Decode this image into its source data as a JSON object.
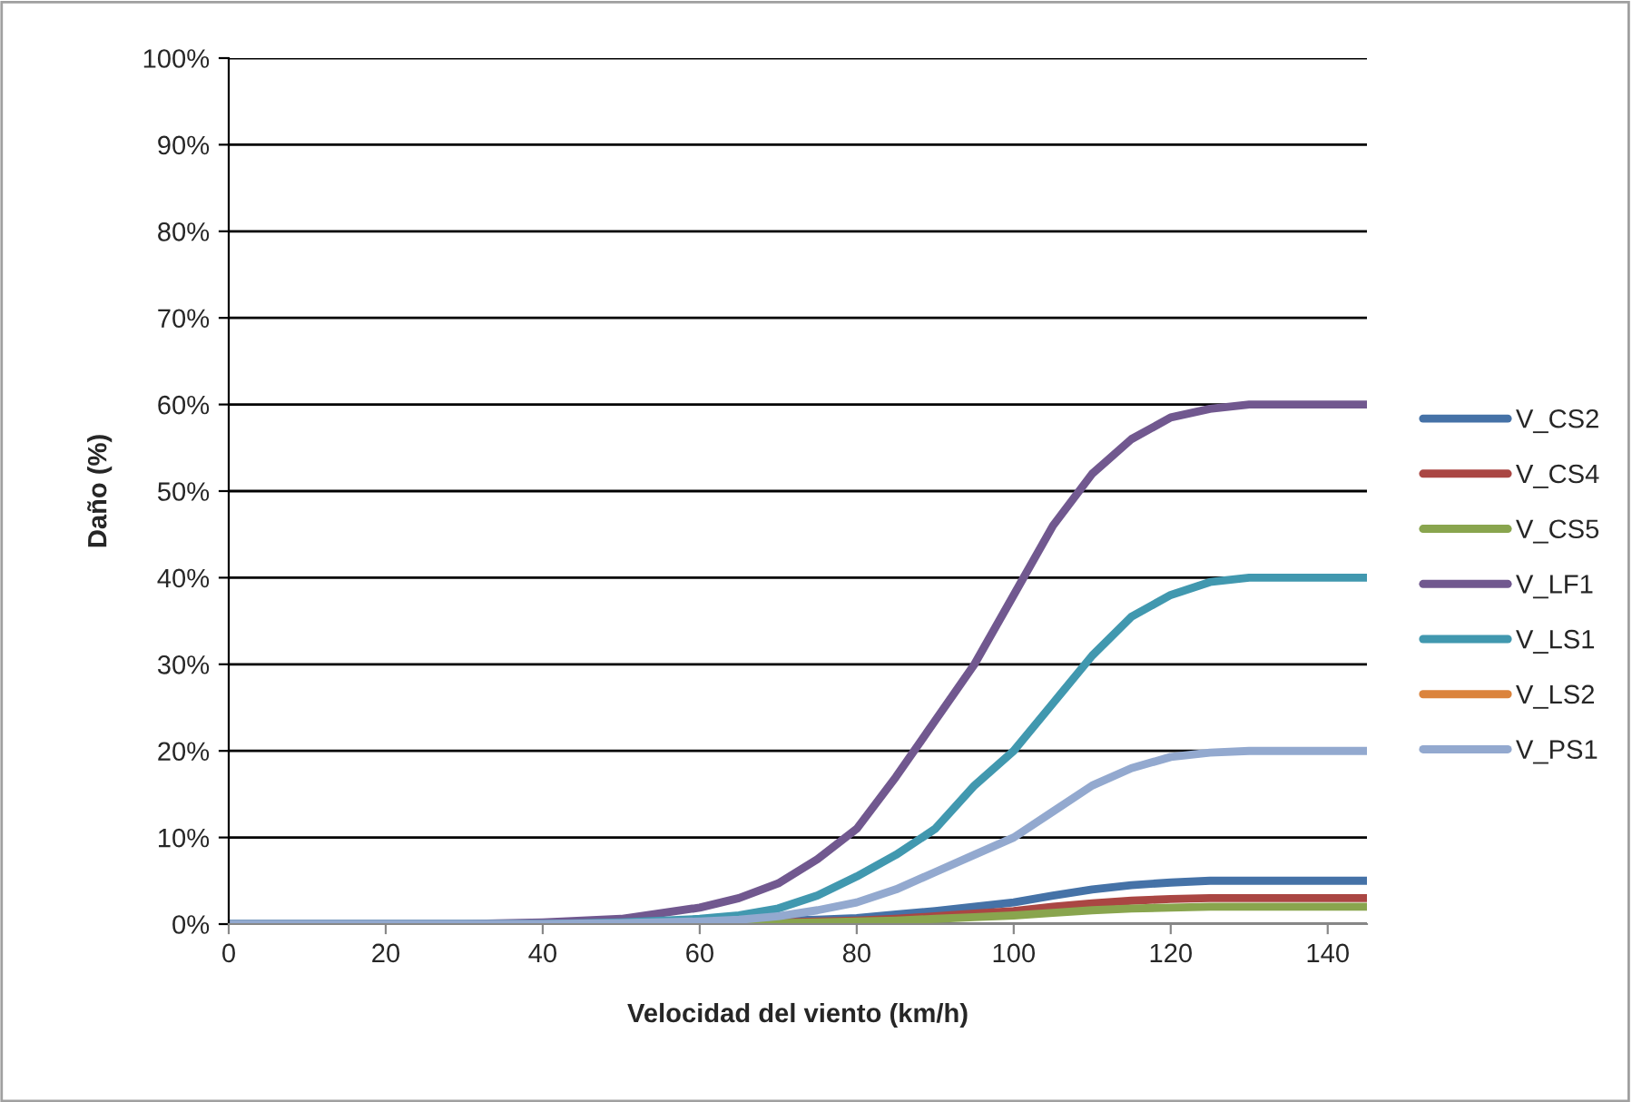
{
  "chart_data": {
    "type": "line",
    "xlabel": "Velocidad del viento (km/h)",
    "ylabel": "Daño (%)",
    "x": [
      0,
      10,
      20,
      30,
      40,
      50,
      60,
      65,
      70,
      75,
      80,
      85,
      90,
      95,
      100,
      105,
      110,
      115,
      120,
      125,
      130,
      135,
      140,
      145
    ],
    "series": [
      {
        "name": "V_CS2",
        "color": "#4572a7",
        "values": [
          0,
          0,
          0,
          0,
          0,
          0,
          0.1,
          0.2,
          0.4,
          0.5,
          0.7,
          1.1,
          1.5,
          2,
          2.5,
          3.3,
          4,
          4.5,
          4.8,
          5,
          5,
          5,
          5,
          5
        ]
      },
      {
        "name": "V_CS4",
        "color": "#aa4643",
        "values": [
          null,
          null,
          null,
          null,
          null,
          null,
          null,
          0.1,
          0.2,
          0.3,
          0.4,
          0.6,
          0.9,
          1.2,
          1.5,
          2,
          2.4,
          2.7,
          2.9,
          3,
          3,
          3,
          3,
          3
        ]
      },
      {
        "name": "V_CS5",
        "color": "#89a54e",
        "values": [
          null,
          null,
          null,
          null,
          null,
          null,
          0,
          0.1,
          0.1,
          0.2,
          0.3,
          0.4,
          0.6,
          0.8,
          1,
          1.3,
          1.6,
          1.8,
          1.9,
          2,
          2,
          2,
          2,
          2
        ]
      },
      {
        "name": "V_LF1",
        "color": "#71588f",
        "values": [
          0,
          0,
          0,
          0,
          0.2,
          0.6,
          1.9,
          3,
          4.7,
          7.5,
          11,
          17,
          23.5,
          30,
          38,
          46,
          52,
          56,
          58.5,
          59.5,
          60,
          60,
          60,
          60
        ]
      },
      {
        "name": "V_LS1",
        "color": "#4198af",
        "values": [
          0,
          0,
          0,
          0,
          0,
          0.2,
          0.6,
          1,
          1.8,
          3.3,
          5.5,
          8,
          11,
          16,
          20,
          25.5,
          31,
          35.5,
          38,
          39.5,
          40,
          40,
          40,
          40
        ]
      },
      {
        "name": "V_LS2",
        "color": "#db843d",
        "values": [
          null,
          null,
          null,
          null,
          null,
          null,
          null,
          null,
          null,
          null,
          null,
          null,
          null,
          null,
          null,
          null,
          null,
          null,
          null,
          null,
          null,
          null,
          null,
          null
        ]
      },
      {
        "name": "V_PS1",
        "color": "#93a9cf",
        "values": [
          0,
          0,
          0,
          0,
          0,
          0.1,
          0.3,
          0.5,
          0.9,
          1.6,
          2.5,
          4,
          6,
          8,
          10,
          13,
          16,
          18,
          19.3,
          19.8,
          20,
          20,
          20,
          20
        ]
      }
    ],
    "xlim": [
      0,
      145
    ],
    "xticks": [
      0,
      20,
      40,
      60,
      80,
      100,
      120,
      140
    ],
    "ylim": [
      0,
      100
    ],
    "yticks": [
      {
        "value": 0,
        "label": "0%"
      },
      {
        "value": 10,
        "label": "10%"
      },
      {
        "value": 20,
        "label": "20%"
      },
      {
        "value": 30,
        "label": "30%"
      },
      {
        "value": 40,
        "label": "40%"
      },
      {
        "value": 50,
        "label": "50%"
      },
      {
        "value": 60,
        "label": "60%"
      },
      {
        "value": 70,
        "label": "70%"
      },
      {
        "value": 80,
        "label": "80%"
      },
      {
        "value": 90,
        "label": "90%"
      },
      {
        "value": 100,
        "label": "100%"
      }
    ],
    "grid": "y",
    "legend": "right",
    "marker": "none",
    "line_style": "solid"
  }
}
